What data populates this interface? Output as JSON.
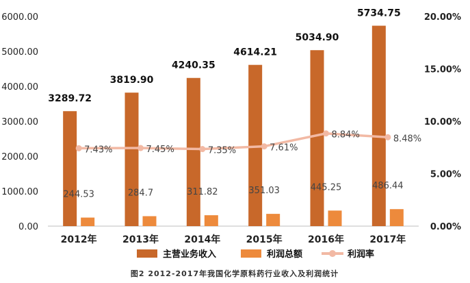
{
  "chart_data": {
    "type": "bar",
    "categories": [
      "2012年",
      "2013年",
      "2014年",
      "2015年",
      "2016年",
      "2017年"
    ],
    "series": [
      {
        "name": "主营业务收入",
        "type": "bar",
        "axis": "left",
        "values": [
          3289.72,
          3819.9,
          4240.35,
          4614.21,
          5034.9,
          5734.75
        ],
        "labels": [
          "3289.72",
          "3819.90",
          "4240.35",
          "4614.21",
          "5034.90",
          "5734.75"
        ],
        "color": "#C8682A"
      },
      {
        "name": "利润总额",
        "type": "bar",
        "axis": "left",
        "values": [
          244.53,
          284.7,
          311.82,
          351.03,
          445.25,
          486.44
        ],
        "labels": [
          "244.53",
          "284.7",
          "311.82",
          "351.03",
          "445.25",
          "486.44"
        ],
        "color": "#ED8A3C"
      },
      {
        "name": "利润率",
        "type": "line",
        "axis": "right",
        "values": [
          7.43,
          7.45,
          7.35,
          7.61,
          8.84,
          8.48
        ],
        "labels": [
          "7.43%",
          "7.45%",
          "7.35%",
          "7.61%",
          "8.84%",
          "8.48%"
        ],
        "color": "#F2B9A4"
      }
    ],
    "ylim_left": [
      0,
      6000
    ],
    "ylim_right": [
      0,
      20
    ],
    "yticks_left": [
      "0.00",
      "1000.00",
      "2000.00",
      "3000.00",
      "4000.00",
      "5000.00",
      "6000.00"
    ],
    "yticks_right": [
      "0.00%",
      "5.00%",
      "10.00%",
      "15.00%",
      "20.00%"
    ],
    "legend_position": "bottom",
    "grid": false,
    "caption": "图2 2012-2017年我国化学原料药行业收入及利润统计"
  }
}
